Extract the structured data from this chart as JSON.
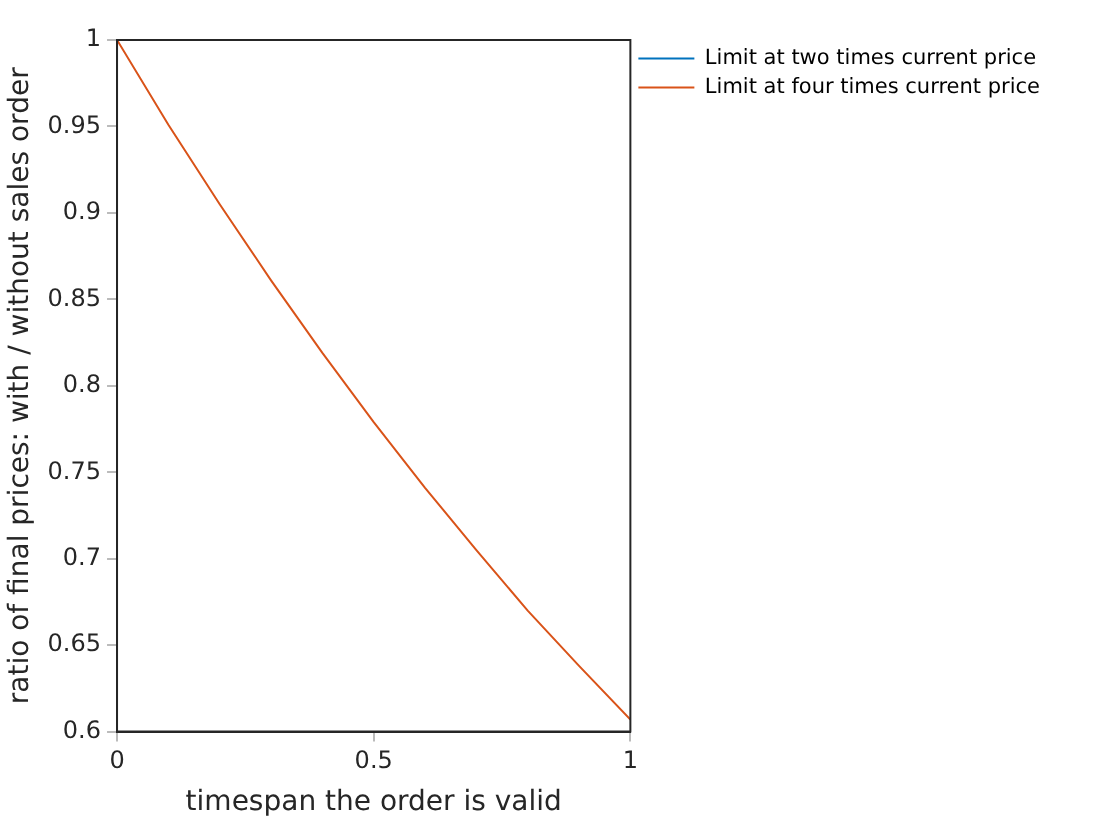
{
  "chart_data": {
    "type": "line",
    "xlabel": "timespan the order is valid",
    "ylabel": "ratio of final prices: with / without sales order",
    "x": [
      0,
      0.1,
      0.2,
      0.3,
      0.4,
      0.5,
      0.6,
      0.7,
      0.8,
      0.9,
      1
    ],
    "series": [
      {
        "name": "Limit at two times current price",
        "color": "#0072bd",
        "values": [
          null,
          null,
          null,
          null,
          null,
          null,
          null,
          null,
          null,
          null,
          null
        ]
      },
      {
        "name": "Limit at four times current price",
        "color": "#d95319",
        "values": [
          1,
          0.951,
          0.905,
          0.861,
          0.819,
          0.779,
          0.741,
          0.705,
          0.67,
          0.638,
          0.607
        ]
      }
    ],
    "xlim": [
      0,
      1
    ],
    "xticks": [
      0,
      0.5,
      1
    ],
    "ylim": [
      0.6,
      1
    ],
    "yticks": [
      0.6,
      0.65,
      0.7,
      0.75,
      0.8,
      0.85,
      0.9,
      0.95,
      1
    ],
    "grid": false,
    "legend": "top right",
    "marker": "none",
    "line_style": "solid"
  }
}
